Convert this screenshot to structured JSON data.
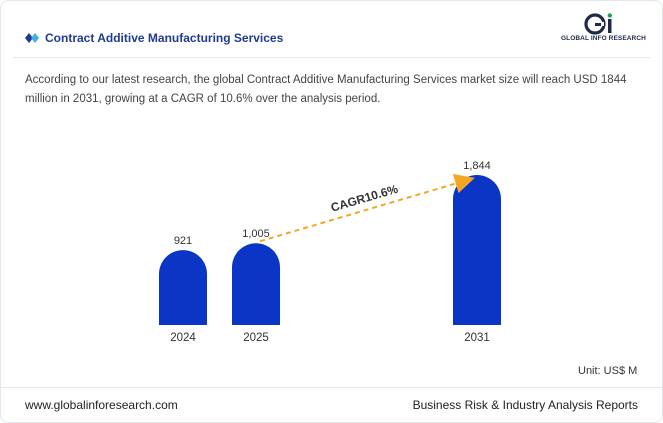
{
  "header": {
    "title": "Contract Additive Manufacturing Services",
    "logo_text": "GLOBAL INFO RESEARCH",
    "brand_color": "#1f3a93"
  },
  "description": "According to our latest research, the global Contract Additive Manufacturing Services market size will reach USD 1844 million in 2031, growing at a CAGR of 10.6% over the analysis period.",
  "chart_data": {
    "type": "bar",
    "categories": [
      "2024",
      "2025",
      "2031"
    ],
    "values": [
      921,
      1005,
      1844
    ],
    "value_labels": [
      "921",
      "1,005",
      "1,844"
    ],
    "annotation": "CAGR10.6%",
    "unit": "Unit: US$ M",
    "bar_color": "#0a35c5",
    "arrow_color": "#f5a623"
  },
  "footer": {
    "website": "www.globalinforesearch.com",
    "tagline": "Business Risk & Industry Analysis Reports"
  }
}
